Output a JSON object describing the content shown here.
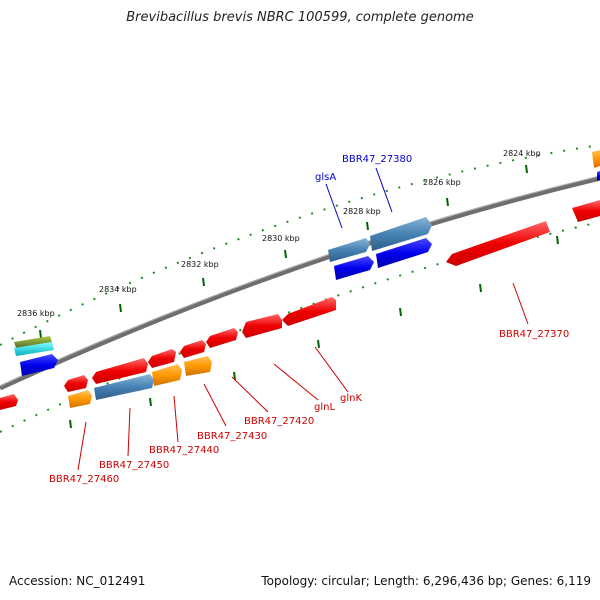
{
  "title": "Brevibacillus brevis NBRC 100599, complete genome",
  "footer": {
    "accession": "Accession: NC_012491",
    "summary": "Topology: circular; Length: 6,296,436 bp; Genes: 6,119"
  },
  "colors": {
    "forward_gene": "#ff0000",
    "reverse_gene": "#0000ff",
    "steelblue_gene": "#4682b4",
    "orange_gene": "#ff8c00",
    "olive_gene": "#6b8e23",
    "cyan_gene": "#00ced1",
    "backbone": "#777777",
    "tick": "#006400",
    "red_label": "#cc0000",
    "blue_label": "#0000cc"
  },
  "scale_labels": [
    "2824 kbp",
    "2826 kbp",
    "2828 kbp",
    "2830 kbp",
    "2832 kbp",
    "2834 kbp",
    "2836 kbp"
  ],
  "gene_labels": [
    {
      "text": "BBR47_27380",
      "color": "blue"
    },
    {
      "text": "glsA",
      "color": "blue"
    },
    {
      "text": "BBR47_27370",
      "color": "red"
    },
    {
      "text": "glnK",
      "color": "red"
    },
    {
      "text": "glnL",
      "color": "red"
    },
    {
      "text": "BBR47_27420",
      "color": "red"
    },
    {
      "text": "BBR47_27430",
      "color": "red"
    },
    {
      "text": "BBR47_27440",
      "color": "red"
    },
    {
      "text": "BBR47_27450",
      "color": "red"
    },
    {
      "text": "BBR47_27460",
      "color": "red"
    }
  ]
}
